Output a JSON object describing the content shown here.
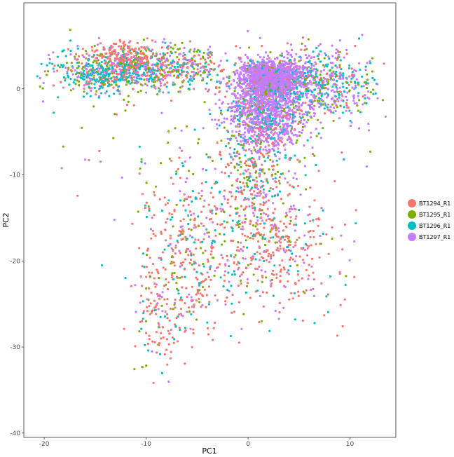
{
  "chart_data": {
    "type": "scatter",
    "title": "",
    "xlabel": "PC1",
    "ylabel": "PC2",
    "xlim": [
      -22,
      14.5
    ],
    "ylim": [
      -40.5,
      10
    ],
    "x_ticks": [
      -20,
      -10,
      0,
      10
    ],
    "y_ticks": [
      0,
      -10,
      -20,
      -30,
      -40
    ],
    "grid": false,
    "legend_position": "right",
    "series": [
      {
        "name": "BT1294_R1",
        "color": "#F8766D"
      },
      {
        "name": "BT1295_R1",
        "color": "#7CAE00"
      },
      {
        "name": "BT1296_R1",
        "color": "#00BFC4"
      },
      {
        "name": "BT1297_R1",
        "color": "#C77CFF"
      }
    ],
    "clusters": [
      {
        "desc": "upper-left band",
        "cx": -10.5,
        "cy": 2.3,
        "sx": 4.5,
        "sy": 1.3,
        "weights": [
          0.22,
          0.22,
          0.28,
          0.28
        ],
        "n": 900
      },
      {
        "desc": "red patch",
        "cx": -12.5,
        "cy": 3.8,
        "sx": 1.6,
        "sy": 0.9,
        "weights": [
          0.9,
          0.05,
          0.03,
          0.02
        ],
        "n": 160
      },
      {
        "desc": "cyan patch",
        "cx": -14,
        "cy": 1.5,
        "sx": 1.8,
        "sy": 0.8,
        "weights": [
          0.05,
          0.05,
          0.85,
          0.05
        ],
        "n": 130
      },
      {
        "desc": "dense purple core",
        "cx": 2.2,
        "cy": 1.2,
        "sx": 1.5,
        "sy": 1.0,
        "weights": [
          0.02,
          0.03,
          0.05,
          0.9
        ],
        "n": 1400
      },
      {
        "desc": "purple blob below core",
        "cx": 1.8,
        "cy": -2.8,
        "sx": 1.9,
        "sy": 2.0,
        "weights": [
          0.03,
          0.05,
          0.12,
          0.8
        ],
        "n": 1000
      },
      {
        "desc": "right arm",
        "cx": 6.8,
        "cy": 0.5,
        "sx": 2.8,
        "sy": 2.2,
        "weights": [
          0.1,
          0.15,
          0.3,
          0.45
        ],
        "n": 650
      },
      {
        "desc": "vertical stem",
        "cx": 1.0,
        "cy": -10.0,
        "sx": 1.8,
        "sy": 4.0,
        "weights": [
          0.3,
          0.2,
          0.2,
          0.3
        ],
        "n": 380
      },
      {
        "desc": "right lower spread",
        "cx": 2.8,
        "cy": -19.0,
        "sx": 2.8,
        "sy": 3.8,
        "weights": [
          0.62,
          0.1,
          0.13,
          0.15
        ],
        "n": 350
      },
      {
        "desc": "left descending arm",
        "cx": -5.5,
        "cy": -19.0,
        "sx": 2.4,
        "sy": 4.5,
        "weights": [
          0.55,
          0.12,
          0.18,
          0.15
        ],
        "n": 380
      },
      {
        "desc": "lower-left tail",
        "cx": -8.5,
        "cy": -27.0,
        "sx": 1.8,
        "sy": 3.0,
        "weights": [
          0.6,
          0.15,
          0.15,
          0.1
        ],
        "n": 130
      },
      {
        "desc": "scattered background",
        "cx": -3.0,
        "cy": -6.0,
        "sx": 7.0,
        "sy": 6.0,
        "weights": [
          0.35,
          0.2,
          0.2,
          0.25
        ],
        "n": 160
      }
    ]
  }
}
